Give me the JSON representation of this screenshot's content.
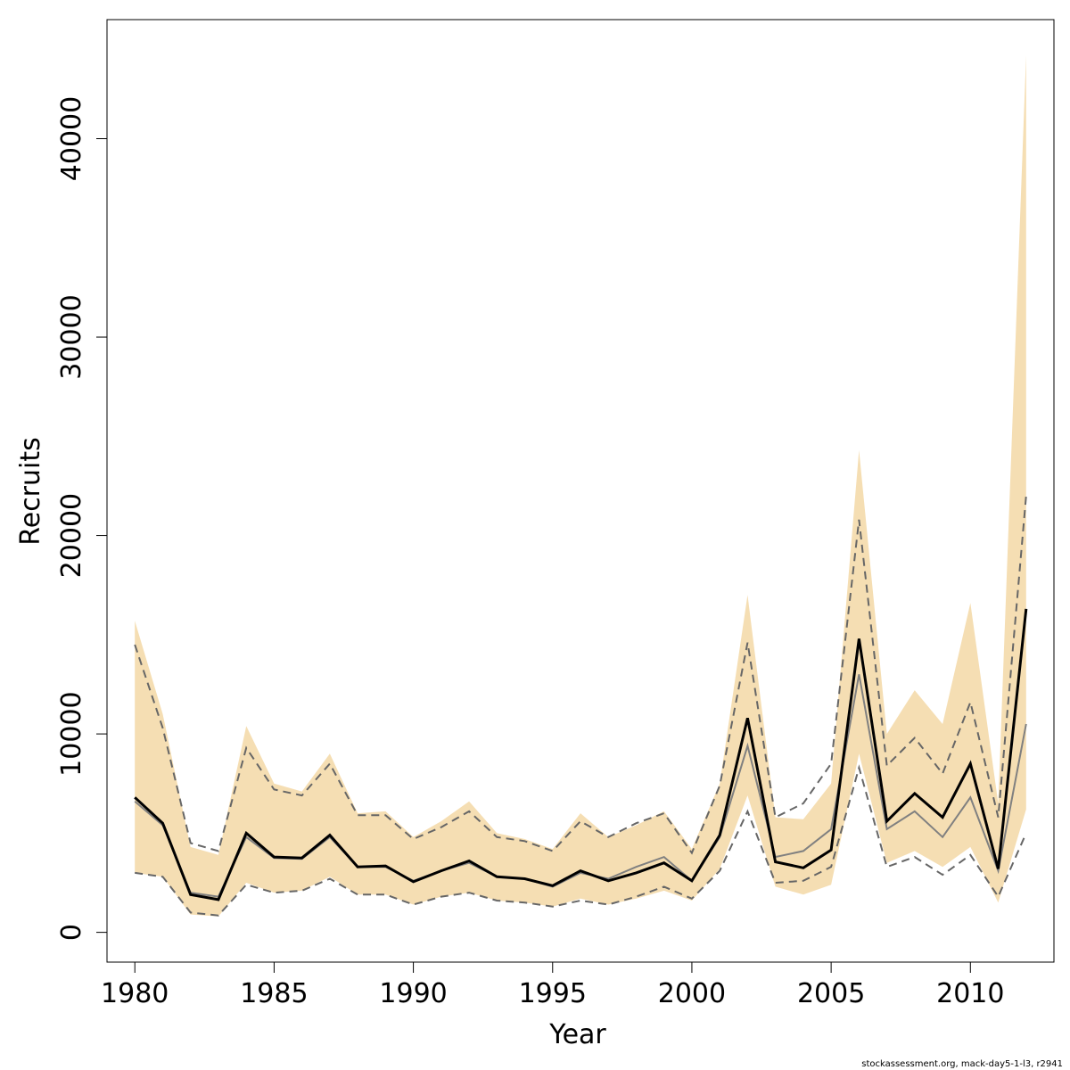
{
  "chart_data": {
    "type": "line",
    "xlabel": "Year",
    "ylabel": "Recruits",
    "xlim": [
      1979,
      2013
    ],
    "ylim": [
      -1500,
      46000
    ],
    "x_ticks": [
      1980,
      1985,
      1990,
      1995,
      2000,
      2005,
      2010
    ],
    "y_ticks": [
      0,
      10000,
      20000,
      30000,
      40000
    ],
    "grid": false,
    "legend": "none",
    "footer": "stockassessment.org, mack-day5-1-l3, r2941",
    "colors": {
      "band": "#f5deb3",
      "main": "#000000",
      "ref": "#808080",
      "ref_ci": "#666666"
    },
    "years": [
      1980,
      1981,
      1982,
      1983,
      1984,
      1985,
      1986,
      1987,
      1988,
      1989,
      1990,
      1991,
      1992,
      1993,
      1994,
      1995,
      1996,
      1997,
      1998,
      1999,
      2000,
      2001,
      2002,
      2003,
      2004,
      2005,
      2006,
      2007,
      2008,
      2009,
      2010,
      2011,
      2012
    ],
    "series": [
      {
        "role": "band",
        "upper": [
          15700,
          11000,
          4300,
          3900,
          10400,
          7500,
          7100,
          9000,
          6000,
          6100,
          4800,
          5600,
          6600,
          5000,
          4700,
          4200,
          6000,
          4800,
          5400,
          6100,
          4200,
          7500,
          17000,
          5800,
          5700,
          7500,
          24300,
          10000,
          12200,
          10500,
          16600,
          6500,
          44200
        ],
        "lower": [
          3000,
          2800,
          900,
          800,
          2500,
          2000,
          2100,
          2800,
          1900,
          1900,
          1400,
          1800,
          2000,
          1600,
          1500,
          1300,
          1700,
          1400,
          1700,
          2100,
          1600,
          3200,
          6900,
          2300,
          1900,
          2400,
          9000,
          3500,
          4100,
          3300,
          4300,
          1500,
          6200
        ]
      },
      {
        "role": "main",
        "values": [
          6800,
          5500,
          1900,
          1650,
          5000,
          3800,
          3750,
          4900,
          3300,
          3350,
          2550,
          3100,
          3600,
          2800,
          2700,
          2350,
          3100,
          2600,
          3000,
          3500,
          2600,
          4900,
          10800,
          3550,
          3250,
          4150,
          14800,
          5600,
          7000,
          5800,
          8500,
          3200,
          16300
        ]
      },
      {
        "role": "ref",
        "values": [
          6600,
          5400,
          2000,
          1800,
          4800,
          3750,
          3700,
          4800,
          3300,
          3300,
          2600,
          3100,
          3500,
          2800,
          2700,
          2300,
          3000,
          2700,
          3300,
          3800,
          2600,
          4800,
          9400,
          3800,
          4100,
          5200,
          13000,
          5200,
          6100,
          4800,
          6800,
          3100,
          10500
        ]
      },
      {
        "role": "ref_ci",
        "upper": [
          14500,
          10300,
          4500,
          4100,
          9300,
          7200,
          6900,
          8500,
          5900,
          5900,
          4700,
          5300,
          6100,
          4800,
          4600,
          4100,
          5600,
          4800,
          5500,
          6000,
          4000,
          7400,
          14600,
          5800,
          6500,
          8500,
          20800,
          8400,
          9800,
          8000,
          11600,
          5800,
          22000
        ],
        "lower": [
          3000,
          2800,
          1000,
          850,
          2400,
          2000,
          2100,
          2700,
          1900,
          1900,
          1400,
          1800,
          2000,
          1600,
          1500,
          1300,
          1600,
          1400,
          1800,
          2300,
          1700,
          3100,
          6100,
          2500,
          2600,
          3300,
          8300,
          3300,
          3800,
          2900,
          3900,
          1800,
          5000
        ]
      }
    ]
  }
}
